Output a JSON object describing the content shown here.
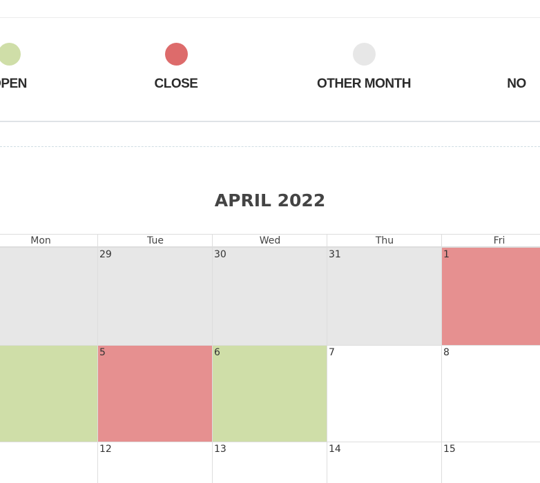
{
  "colors": {
    "open": "#cfdea8",
    "close": "#dd6b6b",
    "close_cell": "#e69090",
    "other_month": "#e7e7e7",
    "no_data": "#ffffff"
  },
  "legend": [
    {
      "label": "OPEN",
      "color": "#cfdea8"
    },
    {
      "label": "CLOSE",
      "color": "#dd6b6b"
    },
    {
      "label": "OTHER MONTH",
      "color": "#e7e7e7"
    },
    {
      "label": "NO",
      "color": "#ffffff"
    }
  ],
  "calendar": {
    "title": "APRIL 2022",
    "weekdays": [
      "Mon",
      "Tue",
      "Wed",
      "Thu",
      "Fri"
    ],
    "weeks": [
      [
        {
          "day": "",
          "status": "other_month"
        },
        {
          "day": "29",
          "status": "other_month"
        },
        {
          "day": "30",
          "status": "other_month"
        },
        {
          "day": "31",
          "status": "other_month"
        },
        {
          "day": "1",
          "status": "close"
        }
      ],
      [
        {
          "day": "",
          "status": "open"
        },
        {
          "day": "5",
          "status": "close"
        },
        {
          "day": "6",
          "status": "open"
        },
        {
          "day": "7",
          "status": "no_data"
        },
        {
          "day": "8",
          "status": "no_data"
        }
      ],
      [
        {
          "day": "",
          "status": "no_data"
        },
        {
          "day": "12",
          "status": "no_data"
        },
        {
          "day": "13",
          "status": "no_data"
        },
        {
          "day": "14",
          "status": "no_data"
        },
        {
          "day": "15",
          "status": "no_data"
        }
      ]
    ]
  }
}
